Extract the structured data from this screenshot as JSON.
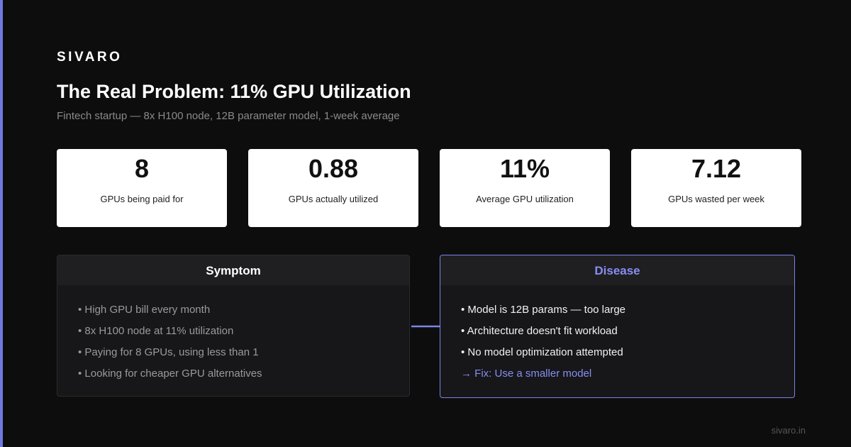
{
  "brand": "SIVARO",
  "title": "The Real Problem: 11% GPU Utilization",
  "subtitle": "Fintech startup — 8x H100 node, 12B parameter model, 1-week average",
  "stats": [
    {
      "value": "8",
      "label": "GPUs being paid for"
    },
    {
      "value": "0.88",
      "label": "GPUs actually utilized"
    },
    {
      "value": "11%",
      "label": "Average GPU utilization"
    },
    {
      "value": "7.12",
      "label": "GPUs wasted per week"
    }
  ],
  "symptom": {
    "title": "Symptom",
    "items": [
      "High GPU bill every month",
      "8x H100 node at 11% utilization",
      "Paying for 8 GPUs, using less than 1",
      "Looking for cheaper GPU alternatives"
    ]
  },
  "disease": {
    "title": "Disease",
    "items": [
      "Model is 12B params — too large",
      "Architecture doesn't fit workload",
      "No model optimization attempted"
    ],
    "fix": "→ Fix: Use a smaller model"
  },
  "footer": "sivaro.in"
}
